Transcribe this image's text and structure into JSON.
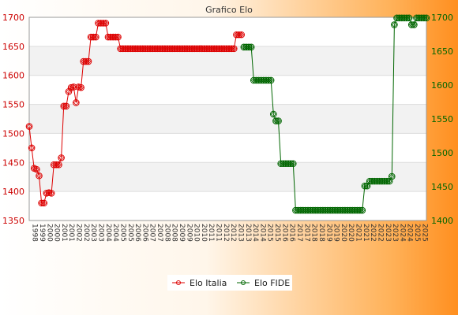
{
  "chart_data": {
    "type": "line",
    "title": "Grafico Elo",
    "xlabel": "",
    "ylabel_left": "",
    "ylabel_right": "",
    "grid": true,
    "legend": "bottom-center",
    "y_left": {
      "lim": [
        1350,
        1700
      ],
      "ticks": [
        1350,
        1400,
        1450,
        1500,
        1550,
        1600,
        1650,
        1700
      ],
      "color": "#cc0000"
    },
    "y_right": {
      "lim": [
        1400,
        1700
      ],
      "ticks": [
        1400,
        1450,
        1500,
        1550,
        1600,
        1650,
        1700
      ],
      "color": "#006600"
    },
    "series": [
      {
        "name": "Elo Italia",
        "axis": "left",
        "color": "#dd0000",
        "x": [
          1,
          2,
          3,
          4,
          5,
          6,
          7,
          8,
          9,
          10,
          11,
          12,
          13,
          14,
          15,
          16,
          17,
          18,
          19,
          20,
          21,
          22,
          23,
          24,
          25,
          26,
          27,
          28,
          29,
          30,
          31,
          32,
          33,
          34,
          35,
          36,
          37,
          38,
          39,
          40,
          41,
          42,
          43,
          44,
          45,
          46,
          47,
          48,
          49,
          50,
          51,
          52,
          53,
          54,
          55,
          56,
          57,
          58,
          59,
          60,
          61,
          62,
          63,
          64,
          65,
          66,
          67,
          68,
          69,
          70,
          71,
          72,
          73,
          74,
          75,
          76,
          77,
          78,
          79,
          80,
          81,
          82,
          83,
          84,
          85,
          86,
          87,
          88
        ],
        "values": [
          1512,
          1475,
          1440,
          1438,
          1427,
          1380,
          1380,
          1397,
          1398,
          1397,
          1446,
          1446,
          1446,
          1458,
          1547,
          1547,
          1572,
          1579,
          1580,
          1553,
          1580,
          1579,
          1624,
          1624,
          1624,
          1666,
          1666,
          1666,
          1690,
          1690,
          1690,
          1690,
          1666,
          1666,
          1666,
          1666,
          1666,
          1646,
          1646,
          1646,
          1646,
          1646,
          1646,
          1646,
          1646,
          1646,
          1646,
          1646,
          1646,
          1646,
          1646,
          1646,
          1646,
          1646,
          1646,
          1646,
          1646,
          1646,
          1646,
          1646,
          1646,
          1646,
          1646,
          1646,
          1646,
          1646,
          1646,
          1646,
          1646,
          1646,
          1646,
          1646,
          1646,
          1646,
          1646,
          1646,
          1646,
          1646,
          1646,
          1646,
          1646,
          1646,
          1646,
          1646,
          1670,
          1670,
          1670,
          null
        ]
      },
      {
        "name": "Elo FIDE",
        "axis": "right",
        "color": "#006600",
        "x": [
          88,
          89,
          90,
          91,
          92,
          93,
          94,
          95,
          96,
          97,
          98,
          99,
          100,
          101,
          102,
          103,
          104,
          105,
          106,
          107,
          108,
          109,
          110,
          111,
          112,
          113,
          114,
          115,
          116,
          117,
          118,
          119,
          120,
          121,
          122,
          123,
          124,
          125,
          126,
          127,
          128,
          129,
          130,
          131,
          132,
          133,
          134,
          135,
          136,
          137,
          138,
          139,
          140,
          141,
          142,
          143,
          144,
          145,
          146,
          147,
          148,
          149,
          150,
          151,
          152,
          153,
          154,
          155,
          156,
          157,
          158,
          159,
          160,
          161,
          162
        ],
        "values": [
          1656,
          1656,
          1656,
          1656,
          1607,
          1607,
          1607,
          1607,
          1607,
          1607,
          1607,
          1607,
          1557,
          1547,
          1547,
          1484,
          1484,
          1484,
          1484,
          1484,
          1484,
          1415,
          1415,
          1415,
          1415,
          1415,
          1415,
          1415,
          1415,
          1415,
          1415,
          1415,
          1415,
          1415,
          1415,
          1415,
          1415,
          1415,
          1415,
          1415,
          1415,
          1415,
          1415,
          1415,
          1415,
          1415,
          1415,
          1415,
          1415,
          1451,
          1451,
          1458,
          1458,
          1458,
          1458,
          1458,
          1458,
          1458,
          1458,
          1458,
          1465,
          1689,
          1699,
          1699,
          1699,
          1699,
          1699,
          1699,
          1689,
          1689,
          1699,
          1699,
          1699,
          1699,
          1699
        ]
      }
    ],
    "x_tick_labels": [
      "1998",
      "1999",
      "2000",
      "2000",
      "2001",
      "2001",
      "2002",
      "2002",
      "2003",
      "2003",
      "2004",
      "2004",
      "2005",
      "2005",
      "2006",
      "2006",
      "2007",
      "2007",
      "2008",
      "2008",
      "2009",
      "2009",
      "2010",
      "2010",
      "2011",
      "2011",
      "2012",
      "2012",
      "2013",
      "2013",
      "2014",
      "2014",
      "2015",
      "2015",
      "2016",
      "2016",
      "2017",
      "2017",
      "2018",
      "2018",
      "2019",
      "2019",
      "2020",
      "2020",
      "2021",
      "2021",
      "2022",
      "2022",
      "2023",
      "2023",
      "2024",
      "2024",
      "2025",
      "2025"
    ]
  }
}
